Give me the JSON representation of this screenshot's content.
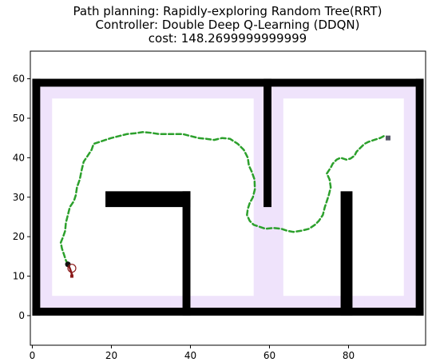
{
  "chart_data": {
    "type": "line",
    "title_lines": [
      "Path planning: Rapidly-exploring Random Tree(RRT)",
      "Controller: Double Deep Q-Learning (DDQN)",
      "cost: 148.2699999999999"
    ],
    "xlabel": "",
    "ylabel": "",
    "xlim": [
      -0.5,
      99.5
    ],
    "ylim": [
      -7.5,
      67
    ],
    "xticks": [
      0,
      20,
      40,
      60,
      80
    ],
    "yticks": [
      0,
      10,
      20,
      30,
      40,
      50,
      60
    ],
    "grid": false,
    "colors": {
      "wall": "#000000",
      "clearance": "#efe3fb",
      "path": "#2ca02c",
      "robot_trail": "#8b1a1a",
      "goal": "#555566"
    },
    "walls": [
      {
        "x0": 0,
        "x1": 99,
        "y0": 0,
        "y1": 2
      },
      {
        "x0": 0,
        "x1": 99,
        "y0": 58,
        "y1": 60
      },
      {
        "x0": 0,
        "x1": 2,
        "y0": 0,
        "y1": 60
      },
      {
        "x0": 97,
        "x1": 99,
        "y0": 0,
        "y1": 60
      },
      {
        "x0": 18.5,
        "x1": 40,
        "y0": 27.5,
        "y1": 31.5
      },
      {
        "x0": 38,
        "x1": 40,
        "y0": 0,
        "y1": 31.5
      },
      {
        "x0": 58.5,
        "x1": 60.5,
        "y0": 27.5,
        "y1": 60
      },
      {
        "x0": 78,
        "x1": 81,
        "y0": 0,
        "y1": 31.5
      }
    ],
    "clearance": [
      {
        "x0": 2,
        "x1": 97,
        "y0": 2,
        "y1": 58
      },
      {
        "x0": 15.5,
        "x1": 43,
        "y0": 24.5,
        "y1": 34.5
      },
      {
        "x0": 35,
        "x1": 43,
        "y0": 2,
        "y1": 34.5
      },
      {
        "x0": 55.5,
        "x1": 63.5,
        "y0": 24.5,
        "y1": 58
      },
      {
        "x0": 75,
        "x1": 84,
        "y0": 2,
        "y1": 34.5
      }
    ],
    "free_space": [
      {
        "x0": 5,
        "x1": 56,
        "y0": 5,
        "y1": 55
      },
      {
        "x0": 63.5,
        "x1": 94,
        "y0": 5,
        "y1": 55
      }
    ],
    "path": {
      "x": [
        9,
        8.5,
        8,
        7.5,
        7.2,
        7.8,
        8.3,
        8.5,
        9,
        9.5,
        10.5,
        11,
        11.3,
        12,
        12.5,
        13,
        14,
        15,
        15.5,
        17,
        18.5,
        20,
        22,
        24,
        26,
        28,
        30,
        32,
        34,
        36,
        38,
        40,
        42,
        44,
        46,
        48,
        50,
        52,
        53.5,
        54.5,
        54.8,
        55.5,
        56.2,
        56.3,
        55.8,
        55,
        54.5,
        54.3,
        55,
        56,
        57.5,
        59,
        61,
        63,
        64.5,
        66,
        68,
        70,
        71.5,
        72.5,
        73.5,
        74,
        74.5,
        75,
        75.5,
        75.2,
        74.5,
        75.5,
        76,
        77,
        78,
        79.5,
        80.5,
        81.5,
        82,
        83,
        84,
        85,
        86.5,
        88,
        89
      ],
      "y": [
        13,
        14,
        15.5,
        17,
        18.5,
        20,
        21.5,
        23.5,
        25.5,
        27.5,
        29,
        30.5,
        32.5,
        34.5,
        37,
        39,
        40.5,
        42,
        43.5,
        44,
        44.5,
        45,
        45.5,
        46,
        46.2,
        46.5,
        46.3,
        46,
        46,
        46,
        46,
        45.5,
        45,
        44.8,
        44.5,
        45,
        44.8,
        43.5,
        42,
        40,
        38,
        36.5,
        34.5,
        32,
        30,
        28.5,
        27,
        25.5,
        24,
        23,
        22.5,
        22,
        22.2,
        22,
        21.5,
        21.2,
        21.5,
        22,
        23,
        24,
        25.5,
        27.5,
        29,
        30.5,
        32.5,
        34.5,
        36,
        37.5,
        38.5,
        39.5,
        40,
        39.5,
        39.8,
        40.5,
        41.5,
        42.5,
        43.5,
        44,
        44.5,
        45,
        45.5
      ]
    },
    "robot": {
      "start": [
        9,
        13
      ],
      "heading_circle": [
        10,
        12
      ],
      "trail": [
        [
          9,
          13
        ],
        [
          9.5,
          12
        ],
        [
          10,
          10.5
        ],
        [
          10,
          10
        ]
      ]
    },
    "goal": [
      90,
      45
    ]
  }
}
